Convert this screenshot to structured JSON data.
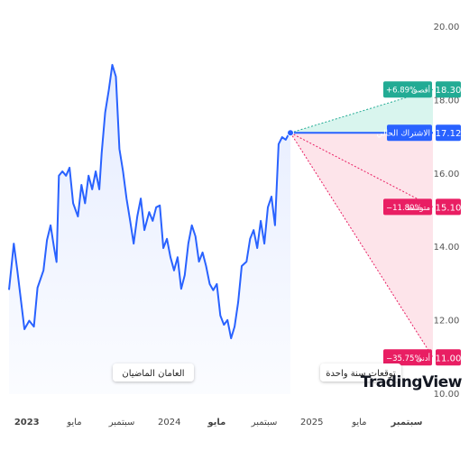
{
  "chart_data": {
    "type": "line",
    "ylim": [
      10,
      20
    ],
    "yticks": [
      {
        "value": 10,
        "label": "10.00"
      },
      {
        "value": 12,
        "label": "12.00"
      },
      {
        "value": 14,
        "label": "14.00"
      },
      {
        "value": 16,
        "label": "16.00"
      },
      {
        "value": 18,
        "label": "18.00"
      },
      {
        "value": 20,
        "label": "20.00"
      }
    ],
    "xlim": [
      -1.5,
      34.2
    ],
    "xticks": [
      {
        "value": 0,
        "label": "2023"
      },
      {
        "value": 4,
        "label": "مايو"
      },
      {
        "value": 8,
        "label": "سبتمبر"
      },
      {
        "value": 12,
        "label": "2024"
      },
      {
        "value": 16,
        "label": "مايو"
      },
      {
        "value": 20,
        "label": "سبتمبر"
      },
      {
        "value": 24,
        "label": "2025"
      },
      {
        "value": 28,
        "label": "مايو"
      },
      {
        "value": 32,
        "label": "سبتمبر"
      }
    ],
    "series": [
      {
        "color": "#2962ff",
        "x": [
          -1.5,
          -1.1,
          -0.8,
          -0.2,
          0.2,
          0.6,
          0.9,
          1.4,
          1.7,
          2.0,
          2.3,
          2.5,
          2.7,
          3.0,
          3.3,
          3.6,
          3.9,
          4.3,
          4.6,
          4.9,
          5.2,
          5.5,
          5.8,
          6.1,
          6.3,
          6.6,
          6.9,
          7.2,
          7.5,
          7.8,
          8.1,
          8.4,
          8.7,
          9.0,
          9.3,
          9.6,
          9.9,
          10.3,
          10.6,
          10.9,
          11.2,
          11.5,
          11.8,
          12.1,
          12.4,
          12.7,
          13.0,
          13.3,
          13.6,
          13.9,
          14.2,
          14.5,
          14.8,
          15.1,
          15.4,
          15.7,
          16.0,
          16.3,
          16.6,
          16.9,
          17.2,
          17.5,
          17.8,
          18.1,
          18.5,
          18.8,
          19.1,
          19.4,
          19.7,
          20.0,
          20.3,
          20.6,
          20.9,
          21.2,
          21.5,
          21.8,
          22.2
        ],
        "values": [
          12.84,
          14.1,
          13.37,
          11.77,
          12.0,
          11.84,
          12.9,
          13.37,
          14.2,
          14.6,
          13.98,
          13.6,
          15.95,
          16.07,
          15.95,
          16.17,
          15.2,
          14.84,
          15.7,
          15.2,
          15.95,
          15.58,
          16.07,
          15.58,
          16.56,
          17.67,
          18.28,
          18.97,
          18.65,
          16.68,
          16.07,
          15.33,
          14.72,
          14.1,
          14.84,
          15.33,
          14.47,
          14.96,
          14.72,
          15.09,
          15.14,
          13.98,
          14.23,
          13.73,
          13.37,
          13.73,
          12.87,
          13.24,
          14.1,
          14.6,
          14.3,
          13.61,
          13.86,
          13.49,
          13.0,
          12.83,
          13.0,
          12.14,
          11.89,
          12.02,
          11.52,
          11.84,
          12.51,
          13.49,
          13.61,
          14.23,
          14.47,
          13.98,
          14.72,
          14.1,
          15.09,
          15.38,
          14.6,
          16.81,
          17.0,
          16.93,
          17.17
        ]
      }
    ],
    "forecast": {
      "start_x": 22.2,
      "end_x": 34.2,
      "current": {
        "name": "الاشتراك الحالي",
        "value": 17.12,
        "value_label": "17.12",
        "color": "#2962ff"
      },
      "targets": [
        {
          "name": "أقصى",
          "change": "+6.89%",
          "value": 18.3,
          "value_label": "18.30",
          "color": "#22ab94"
        },
        {
          "name": "متوسط",
          "change": "−11.80%",
          "value": 15.1,
          "value_label": "15.10",
          "color": "#e91e63"
        },
        {
          "name": "أدنى",
          "change": "−35.75%",
          "value": 11.0,
          "value_label": "11.00",
          "color": "#e91e63"
        }
      ]
    },
    "past_label": "العامان الماضيان",
    "forecast_label": "توقعات سنة واحدة",
    "logo": "TradingView"
  }
}
